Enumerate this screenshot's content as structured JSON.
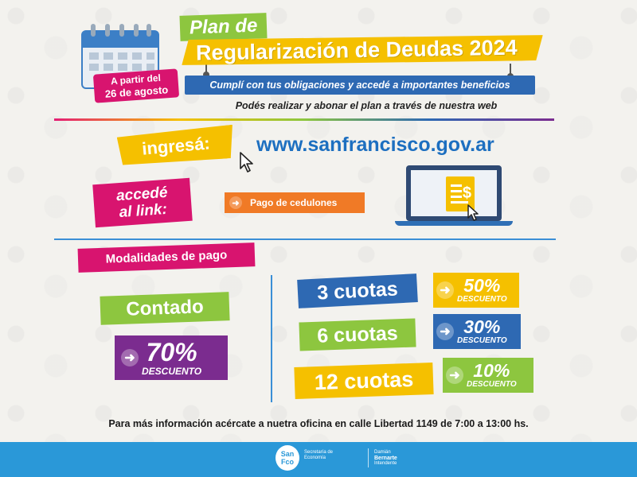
{
  "colors": {
    "yellow": "#f5c000",
    "green": "#8dc63f",
    "blue": "#2e69b3",
    "magenta": "#d8146f",
    "purple": "#7b2c8f",
    "orange": "#f07a26",
    "footer": "#2a98d8"
  },
  "date_badge": {
    "line1": "A partir del",
    "line2": "26 de agosto"
  },
  "title": {
    "small": "Plan de",
    "main": "Regularización de Deudas 2024",
    "subtitle": "Cumplí con tus obligaciones y accedé a importantes beneficios",
    "web_line": "Podés realizar y abonar el plan a través de nuestra web"
  },
  "ingresa": {
    "label": "ingresá:",
    "url": "www.sanfrancisco.gov.ar"
  },
  "accede": {
    "line1": "accedé",
    "line2": "al link:",
    "button": "Pago de cedulones"
  },
  "modalidades": {
    "title": "Modalidades de pago",
    "contado": {
      "label": "Contado",
      "pct": "70%",
      "desc": "DESCUENTO"
    },
    "cuotas": [
      {
        "label": "3 cuotas",
        "pct": "50%",
        "desc": "DESCUENTO"
      },
      {
        "label": "6 cuotas",
        "pct": "30%",
        "desc": "DESCUENTO"
      },
      {
        "label": "12 cuotas",
        "pct": "10%",
        "desc": "DESCUENTO"
      }
    ]
  },
  "info": "Para más información acércate a nuetra oficina en calle Libertad 1149 de 7:00 a 13:00 hs.",
  "footer": {
    "logo_line1": "San",
    "logo_line2": "Fco",
    "secretaria_line1": "Secretaría de",
    "secretaria_line2": "Economía",
    "intendente_line1": "Damián",
    "intendente_line2": "Bernarte",
    "intendente_line3": "Intendente"
  }
}
